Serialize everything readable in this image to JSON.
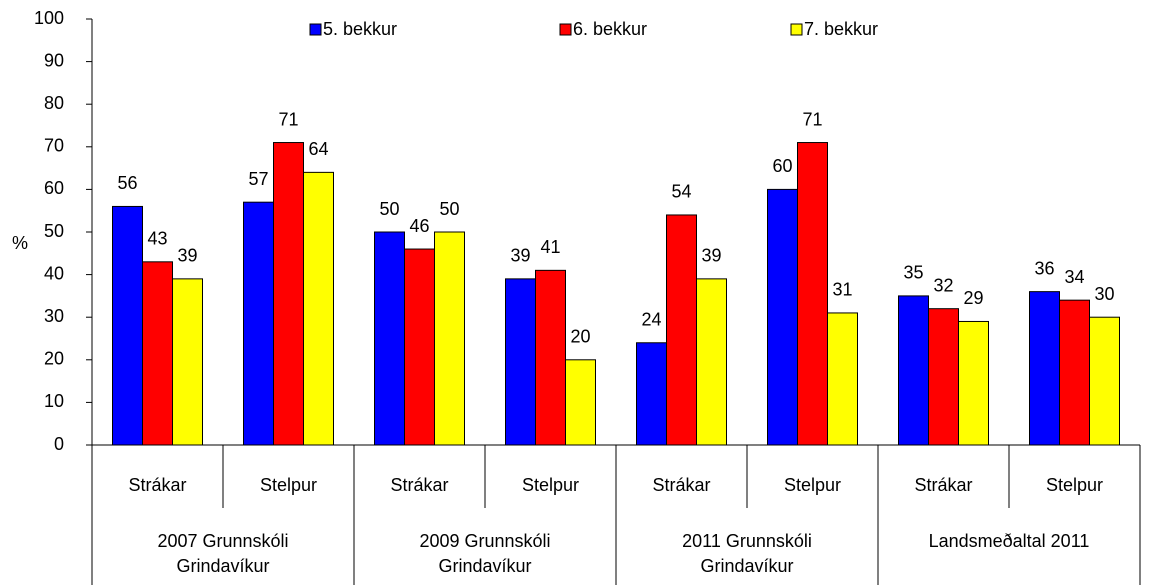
{
  "chart_data": {
    "type": "bar",
    "y_axis_label": "%",
    "categories": [
      "Strákar",
      "Stelpur",
      "Strákar",
      "Stelpur",
      "Strákar",
      "Stelpur",
      "Strákar",
      "Stelpur"
    ],
    "group_labels": [
      [
        "2007 Grunnskóli",
        "Grindavíkur"
      ],
      [
        "2009 Grunnskóli",
        "Grindavíkur"
      ],
      [
        "2011 Grunnskóli",
        "Grindavíkur"
      ],
      [
        "Landsmeðaltal 2011"
      ]
    ],
    "series": [
      {
        "name": "5. bekkur",
        "color": "#0000ff",
        "values": [
          56,
          57,
          50,
          39,
          24,
          60,
          35,
          36
        ]
      },
      {
        "name": "6. bekkur",
        "color": "#ff0000",
        "values": [
          43,
          71,
          46,
          41,
          54,
          71,
          32,
          34
        ]
      },
      {
        "name": "7. bekkur",
        "color": "#ffff00",
        "values": [
          39,
          64,
          50,
          20,
          39,
          31,
          29,
          30
        ]
      }
    ],
    "ylim": [
      0,
      100
    ],
    "yticks": [
      0,
      10,
      20,
      30,
      40,
      50,
      60,
      70,
      80,
      90,
      100
    ],
    "grid": false,
    "legend": "top"
  }
}
